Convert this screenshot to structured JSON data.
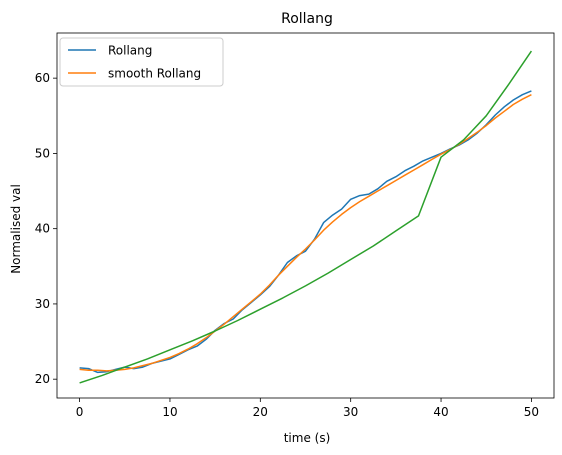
{
  "chart_data": {
    "type": "line",
    "title": "Rollang",
    "xlabel": "time (s)",
    "ylabel": "Normalised val",
    "xlim": [
      -2.5,
      52.5
    ],
    "ylim": [
      17.5,
      66
    ],
    "xticks": [
      0,
      10,
      20,
      30,
      40,
      50
    ],
    "yticks": [
      20,
      30,
      40,
      50,
      60
    ],
    "legend_position": "top-left",
    "grid": false,
    "series": [
      {
        "name": "Rollang",
        "color": "#1f77b4",
        "x": [
          0,
          1,
          2,
          3,
          4,
          5,
          6,
          7,
          8,
          9,
          10,
          11,
          12,
          13,
          14,
          15,
          16,
          17,
          18,
          19,
          20,
          21,
          22,
          23,
          24,
          25,
          26,
          27,
          28,
          29,
          30,
          31,
          32,
          33,
          34,
          35,
          36,
          37,
          38,
          39,
          40,
          41,
          42,
          43,
          44,
          45,
          46,
          47,
          48,
          49,
          50
        ],
        "y": [
          21.5,
          21.4,
          20.9,
          21.0,
          21.3,
          21.6,
          21.4,
          21.6,
          22.1,
          22.4,
          22.7,
          23.3,
          23.9,
          24.4,
          25.3,
          26.5,
          27.4,
          28.0,
          29.2,
          30.2,
          31.2,
          32.3,
          33.8,
          35.5,
          36.4,
          37.0,
          38.6,
          40.8,
          41.8,
          42.6,
          43.9,
          44.4,
          44.6,
          45.3,
          46.3,
          46.9,
          47.7,
          48.3,
          49.0,
          49.5,
          50.0,
          50.6,
          51.1,
          51.8,
          52.7,
          53.8,
          55.1,
          56.2,
          57.1,
          57.8,
          58.3
        ]
      },
      {
        "name": "smooth Rollang",
        "color": "#ff7f0e",
        "x": [
          0,
          1,
          2,
          3,
          4,
          5,
          6,
          7,
          8,
          9,
          10,
          11,
          12,
          13,
          14,
          15,
          16,
          17,
          18,
          19,
          20,
          21,
          22,
          23,
          24,
          25,
          26,
          27,
          28,
          29,
          30,
          31,
          32,
          33,
          34,
          35,
          36,
          37,
          38,
          39,
          40,
          41,
          42,
          43,
          44,
          45,
          46,
          47,
          48,
          49,
          50
        ],
        "y": [
          21.3,
          21.2,
          21.2,
          21.1,
          21.2,
          21.3,
          21.5,
          21.8,
          22.1,
          22.5,
          22.9,
          23.4,
          24.0,
          24.7,
          25.5,
          26.4,
          27.3,
          28.3,
          29.3,
          30.3,
          31.3,
          32.5,
          33.8,
          35.0,
          36.2,
          37.3,
          38.5,
          39.8,
          40.9,
          41.9,
          42.8,
          43.6,
          44.3,
          45.0,
          45.7,
          46.4,
          47.1,
          47.8,
          48.5,
          49.2,
          49.9,
          50.5,
          51.2,
          52.0,
          52.8,
          53.7,
          54.7,
          55.6,
          56.5,
          57.2,
          57.8
        ]
      },
      {
        "color": "#2ca02c",
        "x": [
          0,
          2.5,
          5,
          7.5,
          10,
          12.5,
          15,
          17.5,
          20,
          22.5,
          25,
          27.5,
          30,
          32.5,
          35,
          37.5,
          40,
          42.5,
          45,
          47.5,
          50
        ],
        "y": [
          19.5,
          20.5,
          21.6,
          22.7,
          23.9,
          25.1,
          26.4,
          27.8,
          29.3,
          30.8,
          32.4,
          34.1,
          35.9,
          37.7,
          39.7,
          41.7,
          49.5,
          51.8,
          55.0,
          59.2,
          63.6
        ]
      }
    ]
  }
}
